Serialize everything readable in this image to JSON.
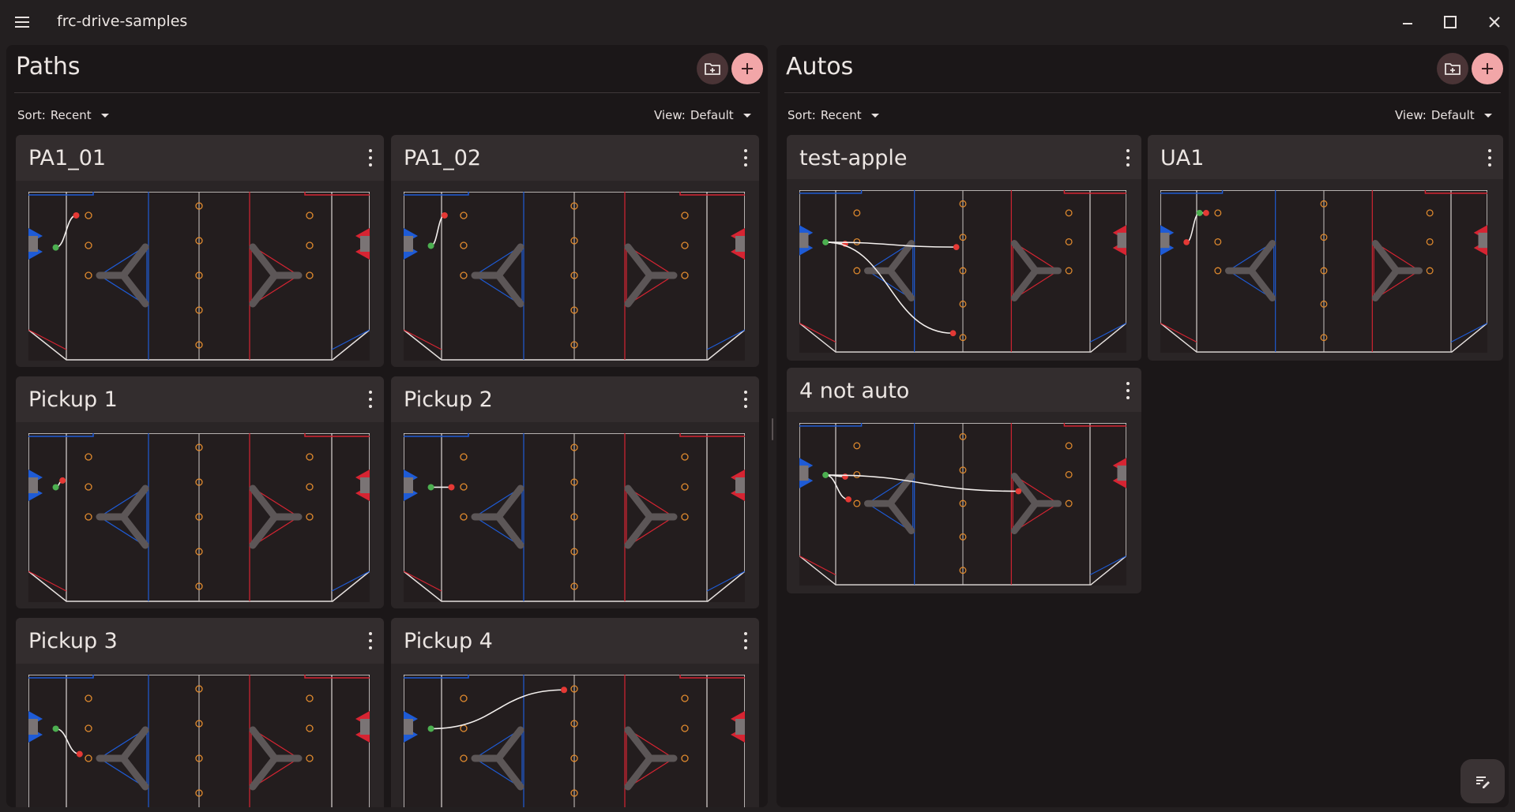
{
  "app": {
    "title": "frc-drive-samples",
    "menu_icon": "hamburger-menu-icon",
    "window_controls": [
      "minimize-icon",
      "maximize-icon",
      "close-icon"
    ]
  },
  "paths_panel": {
    "title": "Paths",
    "sort_label": "Sort:",
    "sort_value": "Recent",
    "view_label": "View:",
    "view_value": "Default",
    "cards": [
      {
        "name": "PA1_01",
        "path": [
          [
            0.08,
            0.33
          ],
          [
            0.14,
            0.14
          ]
        ]
      },
      {
        "name": "PA1_02",
        "path": [
          [
            0.08,
            0.32
          ],
          [
            0.12,
            0.14
          ]
        ]
      },
      {
        "name": "Pickup 1",
        "path": [
          [
            0.08,
            0.32
          ],
          [
            0.1,
            0.28
          ]
        ]
      },
      {
        "name": "Pickup 2",
        "path": [
          [
            0.08,
            0.32
          ],
          [
            0.14,
            0.32
          ]
        ]
      },
      {
        "name": "Pickup 3",
        "path": [
          [
            0.08,
            0.32
          ],
          [
            0.15,
            0.47
          ]
        ]
      },
      {
        "name": "Pickup 4",
        "path": [
          [
            0.08,
            0.32
          ],
          [
            0.47,
            0.09
          ]
        ]
      }
    ]
  },
  "autos_panel": {
    "title": "Autos",
    "sort_label": "Sort:",
    "sort_value": "Recent",
    "view_label": "View:",
    "view_value": "Default",
    "cards": [
      {
        "name": "test-apple"
      },
      {
        "name": "UA1"
      },
      {
        "name": "4 not auto"
      }
    ]
  },
  "colors": {
    "background": "#231f20",
    "panel": "#1b1718",
    "card": "#2a2526",
    "card_header": "#332d2e",
    "accent": "#f2a6a8",
    "blue_alliance": "#1e5bd6",
    "red_alliance": "#d62432",
    "start_point": "#4caf50",
    "end_point": "#e53935",
    "game_piece": "#e08a2e"
  },
  "fab_icon": "edit-notes-icon"
}
